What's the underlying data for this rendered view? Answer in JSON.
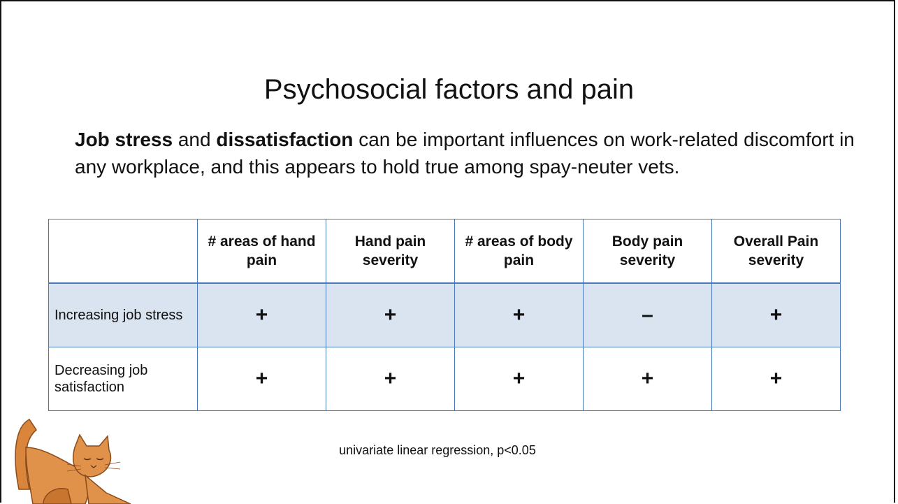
{
  "slide": {
    "title": "Psychosocial factors and pain",
    "body": [
      {
        "text": "Job stress",
        "bold": true
      },
      {
        "text": " and ",
        "bold": false
      },
      {
        "text": "dissatisfaction",
        "bold": true
      },
      {
        "text": " can be important influences on work-related discomfort in any workplace, and this appears to hold true among spay-neuter vets.",
        "bold": false
      }
    ],
    "table": {
      "columns": [
        "# areas of hand pain",
        "Hand pain severity",
        "# areas of body pain",
        "Body pain severity",
        "Overall Pain severity"
      ],
      "rows": [
        {
          "label": "Increasing job stress",
          "highlight": true,
          "cells": [
            "+",
            "+",
            "+",
            "–",
            "+"
          ]
        },
        {
          "label": "Decreasing job satisfaction",
          "highlight": false,
          "cells": [
            "+",
            "+",
            "+",
            "+",
            "+"
          ]
        }
      ]
    },
    "footnote": "univariate linear regression, p<0.05"
  }
}
